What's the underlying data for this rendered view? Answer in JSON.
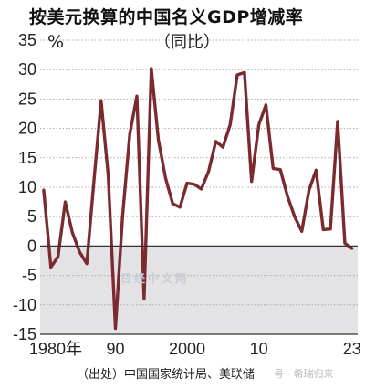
{
  "title": "按美元换算的中国名义GDP增减率",
  "unit_label": "%",
  "subtitle": "（同比）",
  "source": "（出处）中国国家统计局、美联储",
  "watermark_center": "日经中文网",
  "watermark_corner": "号 · 希瑞归来",
  "colors": {
    "line": "#7b2a2e",
    "negative_fill": "#e3e3e6",
    "grid": "#aaaaaa",
    "axis": "#333333"
  },
  "chart_data": {
    "type": "line",
    "title": "按美元换算的中国名义GDP增减率",
    "subtitle": "（同比）",
    "ylabel": "%",
    "xlim": [
      1979.5,
      2023.8
    ],
    "ylim": [
      -15,
      35
    ],
    "yticks": [
      -15,
      -10,
      -5,
      0,
      5,
      10,
      15,
      20,
      25,
      30,
      35
    ],
    "xticks": [
      {
        "value": 1980,
        "label": "1980年"
      },
      {
        "value": 1990,
        "label": "90"
      },
      {
        "value": 2000,
        "label": "2000"
      },
      {
        "value": 2010,
        "label": "10"
      },
      {
        "value": 2023,
        "label": "23"
      }
    ],
    "grid": true,
    "x": [
      1980,
      1981,
      1982,
      1983,
      1984,
      1985,
      1986,
      1987,
      1988,
      1989,
      1990,
      1991,
      1992,
      1993,
      1994,
      1995,
      1996,
      1997,
      1998,
      1999,
      2000,
      2001,
      2002,
      2003,
      2004,
      2005,
      2006,
      2007,
      2008,
      2009,
      2010,
      2011,
      2012,
      2013,
      2014,
      2015,
      2016,
      2017,
      2018,
      2019,
      2020,
      2021,
      2022,
      2023
    ],
    "y": [
      9.5,
      -3.6,
      -1.8,
      7.5,
      2.3,
      -1.0,
      -3.0,
      11.0,
      24.7,
      12.0,
      -14.0,
      5.0,
      19.0,
      25.5,
      -9.0,
      30.2,
      18.0,
      11.5,
      7.2,
      6.6,
      10.7,
      10.5,
      9.7,
      12.7,
      17.8,
      16.8,
      20.6,
      29.1,
      29.5,
      11.0,
      20.6,
      24.0,
      13.2,
      13.0,
      8.5,
      5.0,
      2.5,
      9.5,
      12.9,
      2.8,
      2.9,
      21.2,
      0.5,
      -0.4
    ]
  }
}
